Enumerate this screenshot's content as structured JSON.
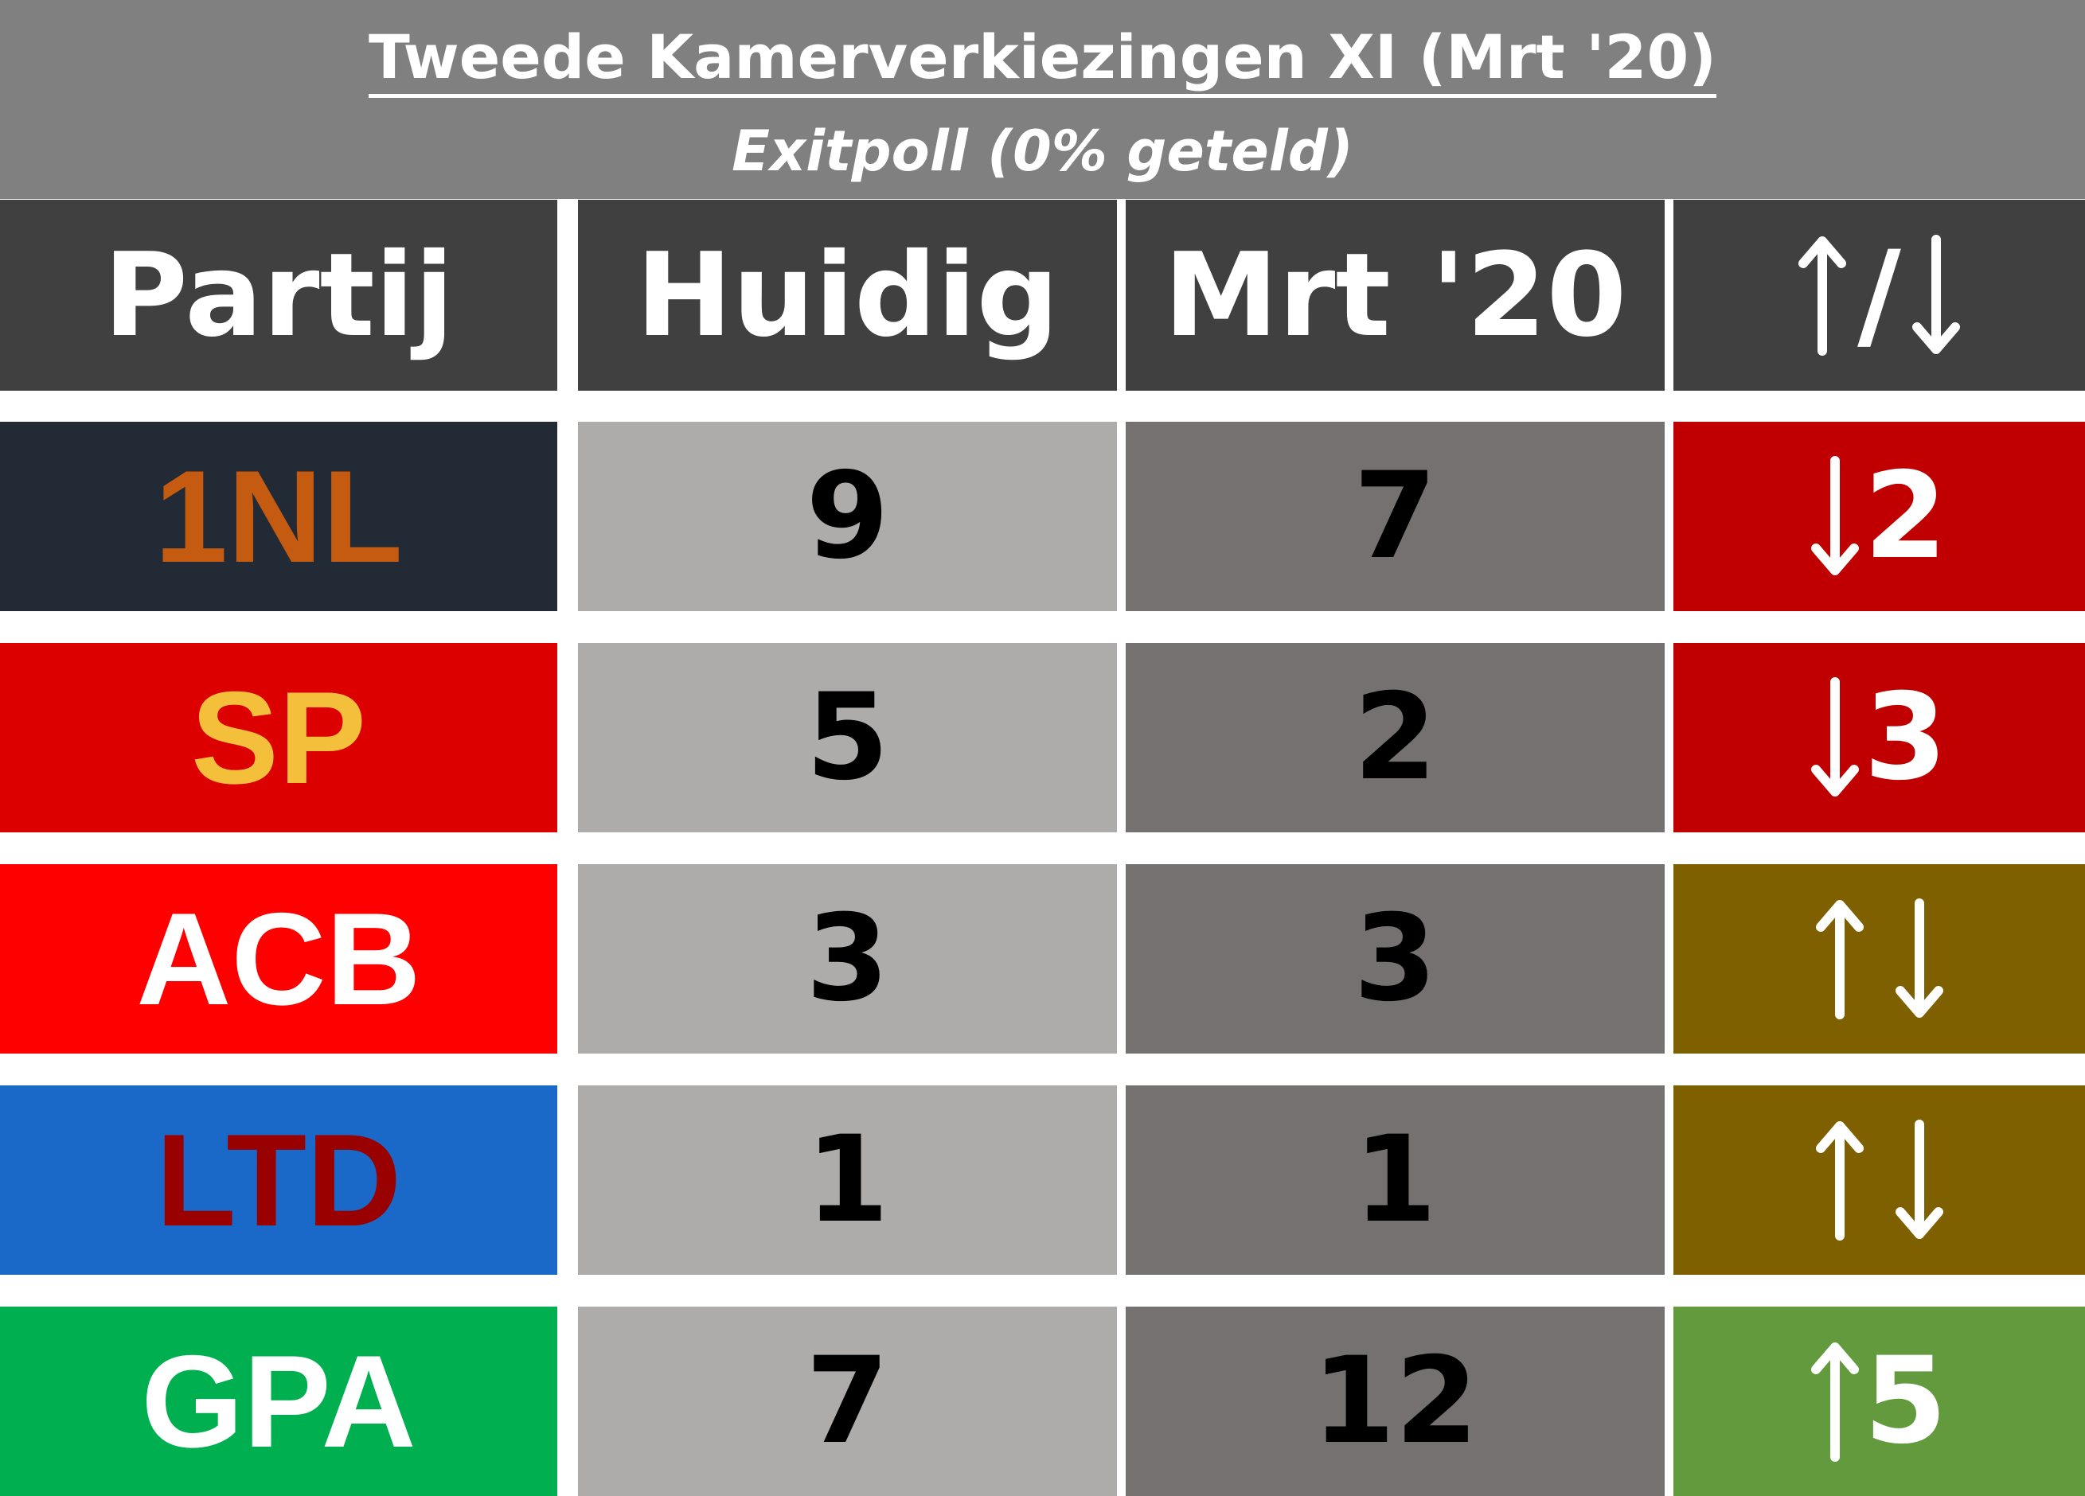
{
  "title": "Tweede Kamerverkiezingen XI (Mrt '20)",
  "subtitle": "Exitpoll (0% geteld)",
  "headers": {
    "party": "Partij",
    "current": "Huidig",
    "previous": "Mrt '20",
    "change": "/"
  },
  "icons": {
    "header": [
      "arrow-up-icon",
      "arrow-down-icon"
    ],
    "down": "arrow-down-icon",
    "up": "arrow-up-icon",
    "equal": [
      "arrow-up-icon",
      "arrow-down-icon"
    ]
  },
  "colors": {
    "banner": "#808080",
    "header": "#404040",
    "current_bg": "#aeabab",
    "previous_bg": "#767171",
    "loss": "#c00000",
    "equal": "#7f6000",
    "gain": "#629a3d"
  },
  "rows": [
    {
      "party": "1NL",
      "party_bg": "#222a35",
      "party_color": "#c55a11",
      "current": "9",
      "previous": "7",
      "change": "2",
      "direction": "down",
      "change_bg": "#c00000"
    },
    {
      "party": "SP",
      "party_bg": "#dd0000",
      "party_color": "#f4c03c",
      "current": "5",
      "previous": "2",
      "change": "3",
      "direction": "down",
      "change_bg": "#c00000"
    },
    {
      "party": "ACB",
      "party_bg": "#ff0000",
      "party_color": "#ffffff",
      "current": "3",
      "previous": "3",
      "change": "",
      "direction": "equal",
      "change_bg": "#7f6000"
    },
    {
      "party": "LTD",
      "party_bg": "#1a69c8",
      "party_color": "#990000",
      "current": "1",
      "previous": "1",
      "change": "",
      "direction": "equal",
      "change_bg": "#7f6000"
    },
    {
      "party": "GPA",
      "party_bg": "#00b050",
      "party_color": "#ffffff",
      "current": "7",
      "previous": "12",
      "change": "5",
      "direction": "up",
      "change_bg": "#629a3d"
    }
  ]
}
